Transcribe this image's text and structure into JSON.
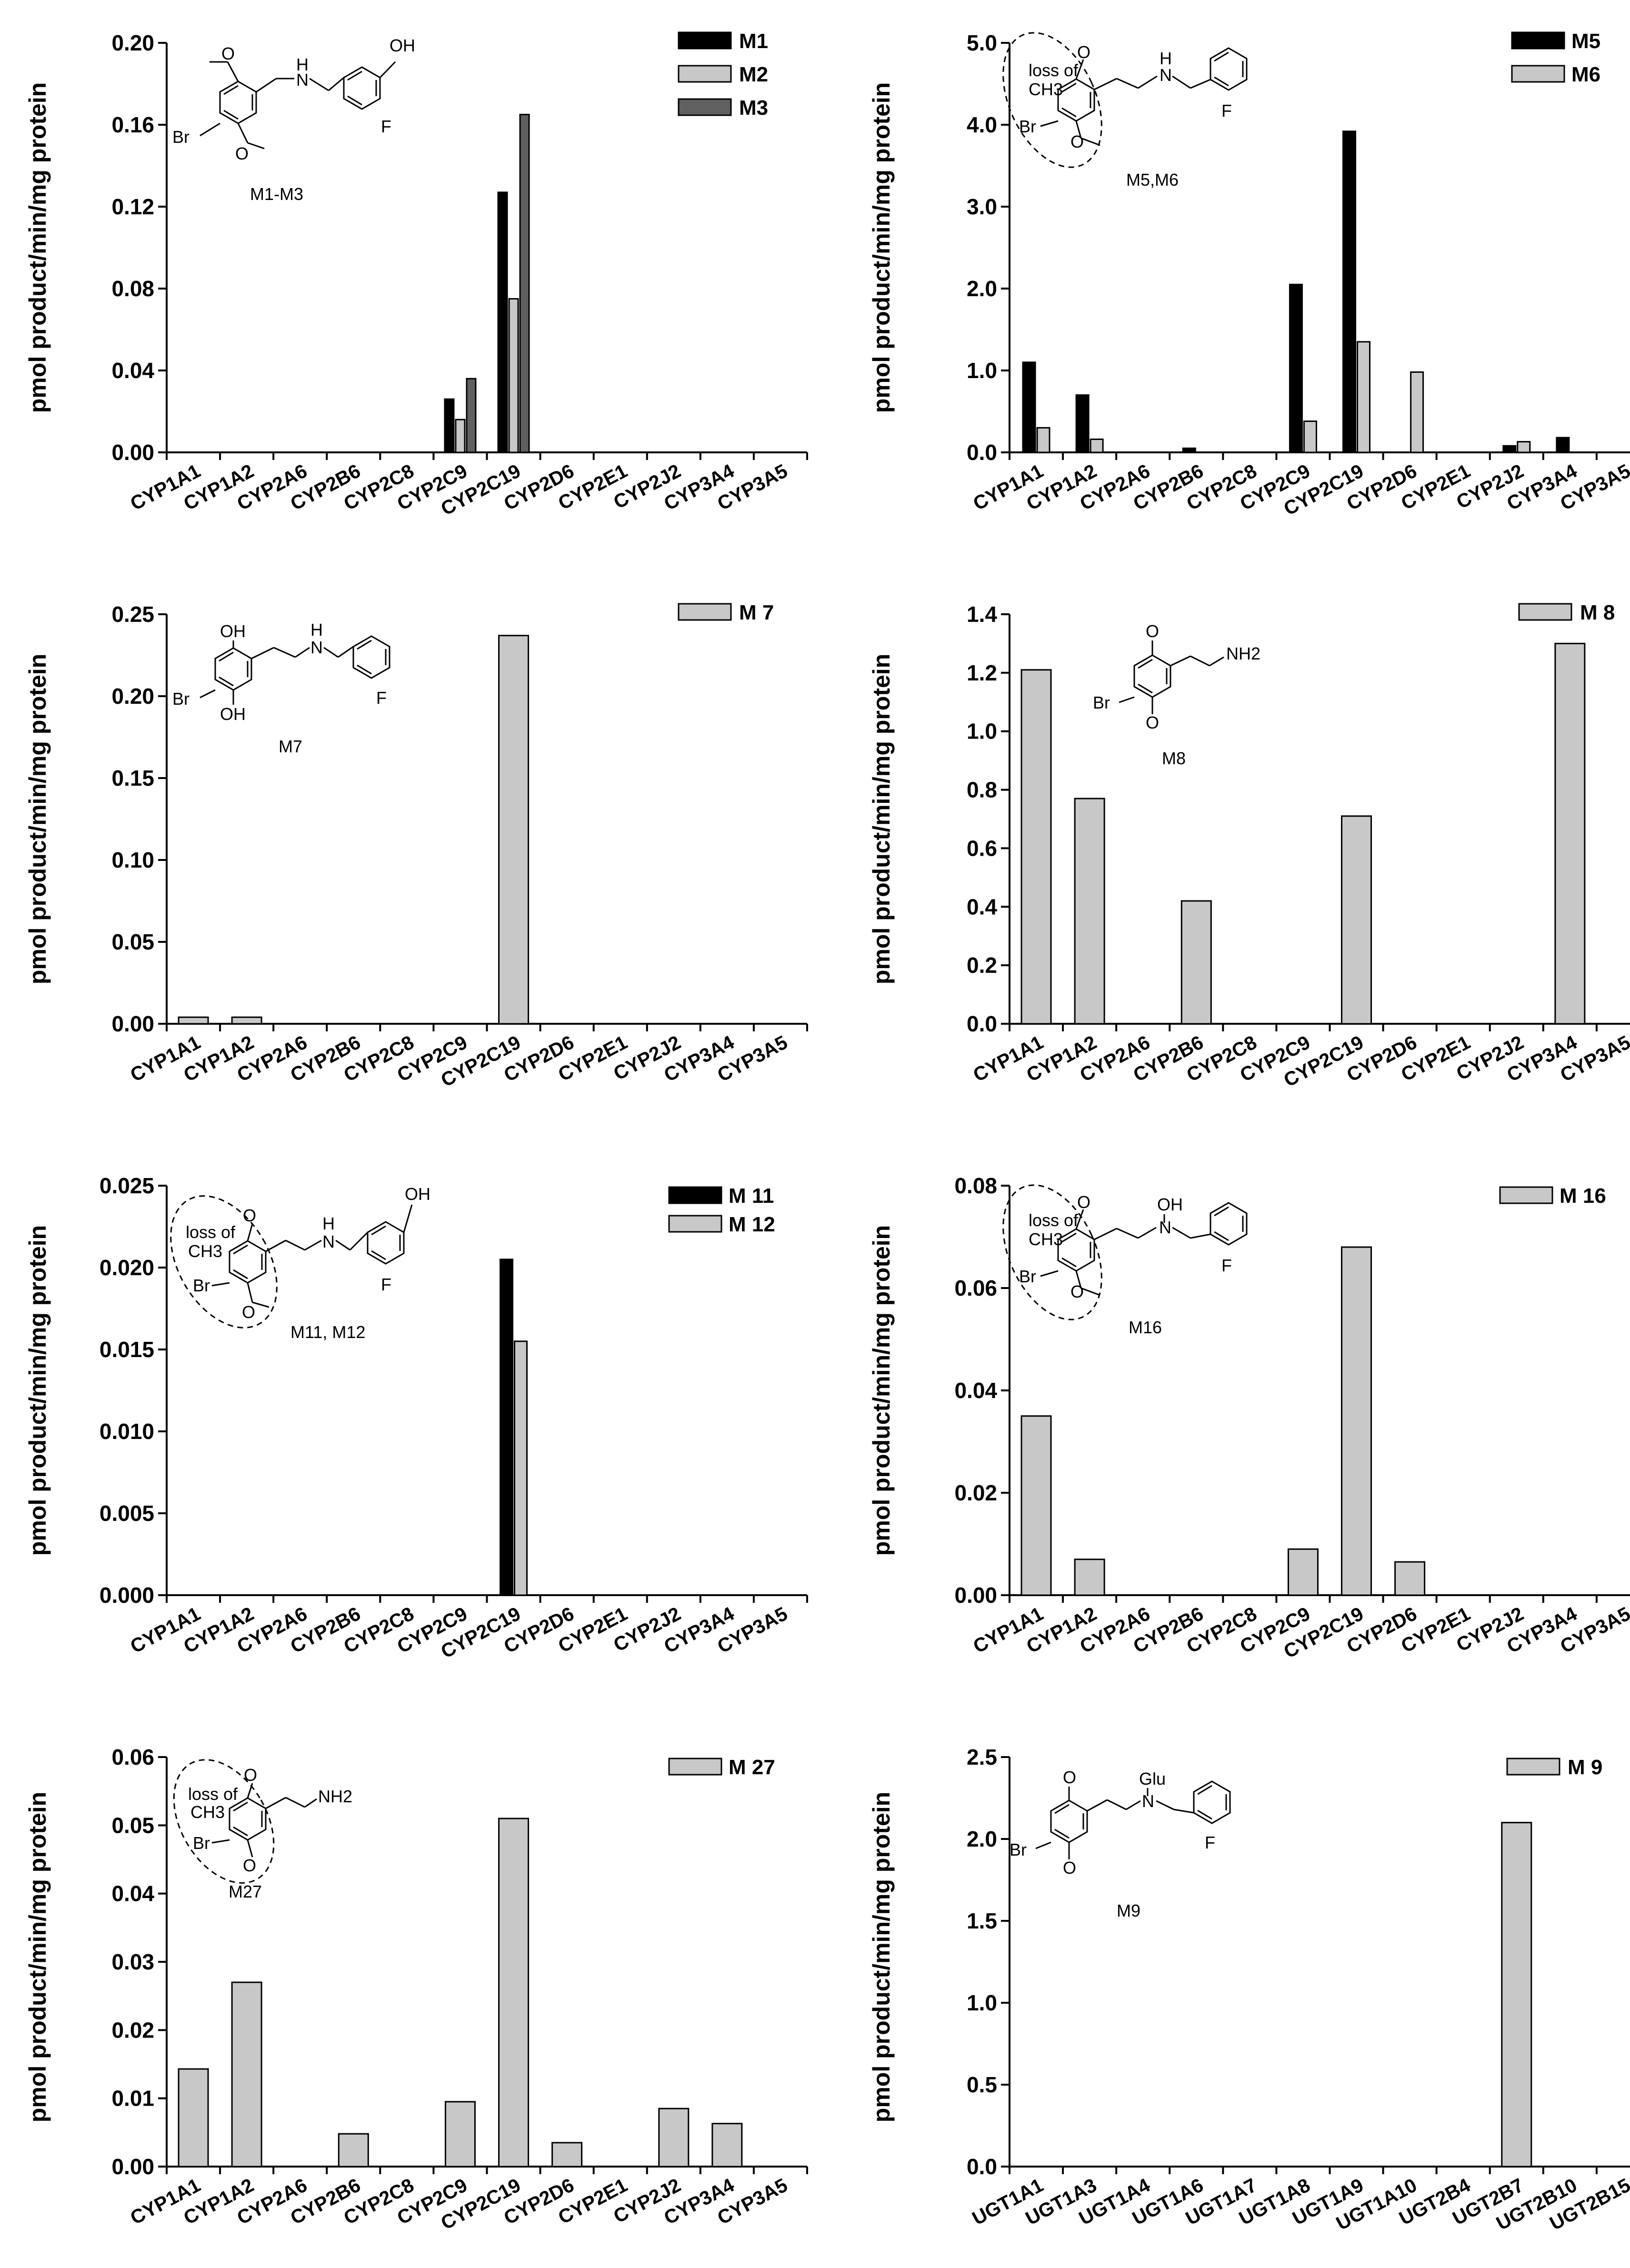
{
  "figure": "panel figure of metabolite formation rates by enzyme",
  "chart_data": [
    {
      "id": "p1",
      "type": "bar",
      "ylabel": "pmol product/min/mg protein",
      "ylim": [
        0,
        0.2
      ],
      "yticks": [
        "0.00",
        "0.04",
        "0.08",
        "0.12",
        "0.16",
        "0.20"
      ],
      "categories": [
        "CYP1A1",
        "CYP1A2",
        "CYP2A6",
        "CYP2B6",
        "CYP2C8",
        "CYP2C9",
        "CYP2C19",
        "CYP2D6",
        "CYP2E1",
        "CYP2J2",
        "CYP3A4",
        "CYP3A5"
      ],
      "series": [
        {
          "name": "M1",
          "color": "#000000",
          "values": [
            0,
            0,
            0,
            0,
            0,
            0.026,
            0.127,
            0,
            0,
            0,
            0,
            0
          ]
        },
        {
          "name": "M2",
          "color": "#c8c8c8",
          "values": [
            0,
            0,
            0,
            0,
            0,
            0.016,
            0.075,
            0,
            0,
            0,
            0,
            0
          ]
        },
        {
          "name": "M3",
          "color": "#606060",
          "values": [
            0,
            0,
            0,
            0,
            0,
            0.036,
            0.165,
            0,
            0,
            0,
            0,
            0
          ]
        }
      ],
      "structure": {
        "labels": [
          "O",
          "H",
          "N",
          "OH",
          "Br",
          "F",
          "O"
        ],
        "caption": "M1-M3"
      }
    },
    {
      "id": "p2",
      "type": "bar",
      "ylabel": "pmol product/min/mg protein",
      "ylim": [
        0,
        5.0
      ],
      "yticks": [
        "0.0",
        "1.0",
        "2.0",
        "3.0",
        "4.0",
        "5.0"
      ],
      "categories": [
        "CYP1A1",
        "CYP1A2",
        "CYP2A6",
        "CYP2B6",
        "CYP2C8",
        "CYP2C9",
        "CYP2C19",
        "CYP2D6",
        "CYP2E1",
        "CYP2J2",
        "CYP3A4",
        "CYP3A5"
      ],
      "series": [
        {
          "name": "M5",
          "color": "#000000",
          "values": [
            1.1,
            0.7,
            0,
            0.05,
            0,
            2.05,
            3.92,
            0,
            0,
            0.08,
            0.18,
            0
          ]
        },
        {
          "name": "M6",
          "color": "#c8c8c8",
          "values": [
            0.3,
            0.16,
            0,
            0,
            0,
            0.38,
            1.35,
            0.98,
            0,
            0.13,
            0,
            0
          ]
        }
      ],
      "structure": {
        "labels": [
          "loss of",
          "CH3",
          "O",
          "H",
          "N",
          "Br",
          "O",
          "F"
        ],
        "caption": "M5,M6"
      }
    },
    {
      "id": "p3",
      "type": "bar",
      "ylabel": "pmol product/min/mg protein",
      "ylim": [
        0,
        0.25
      ],
      "yticks": [
        "0.00",
        "0.05",
        "0.10",
        "0.15",
        "0.20",
        "0.25"
      ],
      "categories": [
        "CYP1A1",
        "CYP1A2",
        "CYP2A6",
        "CYP2B6",
        "CYP2C8",
        "CYP2C9",
        "CYP2C19",
        "CYP2D6",
        "CYP2E1",
        "CYP2J2",
        "CYP3A4",
        "CYP3A5"
      ],
      "series": [
        {
          "name": "M 7",
          "color": "#c8c8c8",
          "values": [
            0.004,
            0.004,
            0,
            0,
            0,
            0,
            0.237,
            0,
            0,
            0,
            0,
            0
          ]
        }
      ],
      "structure": {
        "labels": [
          "OH",
          "H",
          "N",
          "Br",
          "OH",
          "F"
        ],
        "caption": "M7"
      }
    },
    {
      "id": "p4",
      "type": "bar",
      "ylabel": "pmol product/min/mg protein",
      "ylim": [
        0,
        1.4
      ],
      "yticks": [
        "0.0",
        "0.2",
        "0.4",
        "0.6",
        "0.8",
        "1.0",
        "1.2",
        "1.4"
      ],
      "categories": [
        "CYP1A1",
        "CYP1A2",
        "CYP2A6",
        "CYP2B6",
        "CYP2C8",
        "CYP2C9",
        "CYP2C19",
        "CYP2D6",
        "CYP2E1",
        "CYP2J2",
        "CYP3A4",
        "CYP3A5"
      ],
      "series": [
        {
          "name": "M 8",
          "color": "#c8c8c8",
          "values": [
            1.21,
            0.77,
            0,
            0.42,
            0,
            0,
            0.71,
            0,
            0,
            0,
            1.3,
            0
          ]
        }
      ],
      "structure": {
        "labels": [
          "O",
          "NH2",
          "Br",
          "O"
        ],
        "caption": "M8"
      }
    },
    {
      "id": "p5",
      "type": "bar",
      "ylabel": "pmol product/min/mg protein",
      "ylim": [
        0,
        0.025
      ],
      "yticks": [
        "0.000",
        "0.005",
        "0.010",
        "0.015",
        "0.020",
        "0.025"
      ],
      "categories": [
        "CYP1A1",
        "CYP1A2",
        "CYP2A6",
        "CYP2B6",
        "CYP2C8",
        "CYP2C9",
        "CYP2C19",
        "CYP2D6",
        "CYP2E1",
        "CYP2J2",
        "CYP3A4",
        "CYP3A5"
      ],
      "series": [
        {
          "name": "M 11",
          "color": "#000000",
          "values": [
            0,
            0,
            0,
            0,
            0,
            0,
            0.0205,
            0,
            0,
            0,
            0,
            0
          ]
        },
        {
          "name": "M 12",
          "color": "#c8c8c8",
          "values": [
            0,
            0,
            0,
            0,
            0,
            0,
            0.0155,
            0,
            0,
            0,
            0,
            0
          ]
        }
      ],
      "structure": {
        "labels": [
          "loss of",
          "CH3",
          "O",
          "H",
          "N",
          "OH",
          "Br",
          "O",
          "F"
        ],
        "caption": "M11, M12"
      }
    },
    {
      "id": "p6",
      "type": "bar",
      "ylabel": "pmol product/min/mg protein",
      "ylim": [
        0,
        0.08
      ],
      "yticks": [
        "0.00",
        "0.02",
        "0.04",
        "0.06",
        "0.08"
      ],
      "categories": [
        "CYP1A1",
        "CYP1A2",
        "CYP2A6",
        "CYP2B6",
        "CYP2C8",
        "CYP2C9",
        "CYP2C19",
        "CYP2D6",
        "CYP2E1",
        "CYP2J2",
        "CYP3A4",
        "CYP3A5"
      ],
      "series": [
        {
          "name": "M 16",
          "color": "#c8c8c8",
          "values": [
            0.035,
            0.007,
            0,
            0,
            0,
            0.009,
            0.068,
            0.0065,
            0,
            0,
            0,
            0
          ]
        }
      ],
      "structure": {
        "labels": [
          "loss of",
          "CH3",
          "O",
          "OH",
          "N",
          "Br",
          "O",
          "F"
        ],
        "caption": "M16"
      }
    },
    {
      "id": "p7",
      "type": "bar",
      "ylabel": "pmol product/min/mg protein",
      "ylim": [
        0,
        0.06
      ],
      "yticks": [
        "0.00",
        "0.01",
        "0.02",
        "0.03",
        "0.04",
        "0.05",
        "0.06"
      ],
      "categories": [
        "CYP1A1",
        "CYP1A2",
        "CYP2A6",
        "CYP2B6",
        "CYP2C8",
        "CYP2C9",
        "CYP2C19",
        "CYP2D6",
        "CYP2E1",
        "CYP2J2",
        "CYP3A4",
        "CYP3A5"
      ],
      "series": [
        {
          "name": "M 27",
          "color": "#c8c8c8",
          "values": [
            0.0143,
            0.027,
            0,
            0.0048,
            0,
            0.0095,
            0.051,
            0.0035,
            0,
            0.0085,
            0.0063,
            0
          ]
        }
      ],
      "structure": {
        "labels": [
          "loss of",
          "CH3",
          "O",
          "NH2",
          "Br",
          "O"
        ],
        "caption": "M27"
      }
    },
    {
      "id": "p8",
      "type": "bar",
      "ylabel": "pmol product/min/mg protein",
      "ylim": [
        0,
        2.5
      ],
      "yticks": [
        "0.0",
        "0.5",
        "1.0",
        "1.5",
        "2.0",
        "2.5"
      ],
      "categories": [
        "UGT1A1",
        "UGT1A3",
        "UGT1A4",
        "UGT1A6",
        "UGT1A7",
        "UGT1A8",
        "UGT1A9",
        "UGT1A10",
        "UGT2B4",
        "UGT2B7",
        "UGT2B10",
        "UGT2B15"
      ],
      "series": [
        {
          "name": "M 9",
          "color": "#c8c8c8",
          "values": [
            0,
            0,
            0,
            0,
            0,
            0,
            0,
            0,
            0,
            2.1,
            0,
            0
          ]
        }
      ],
      "structure": {
        "labels": [
          "O",
          "Glu",
          "N",
          "Br",
          "O",
          "F"
        ],
        "caption": "M9"
      }
    }
  ]
}
